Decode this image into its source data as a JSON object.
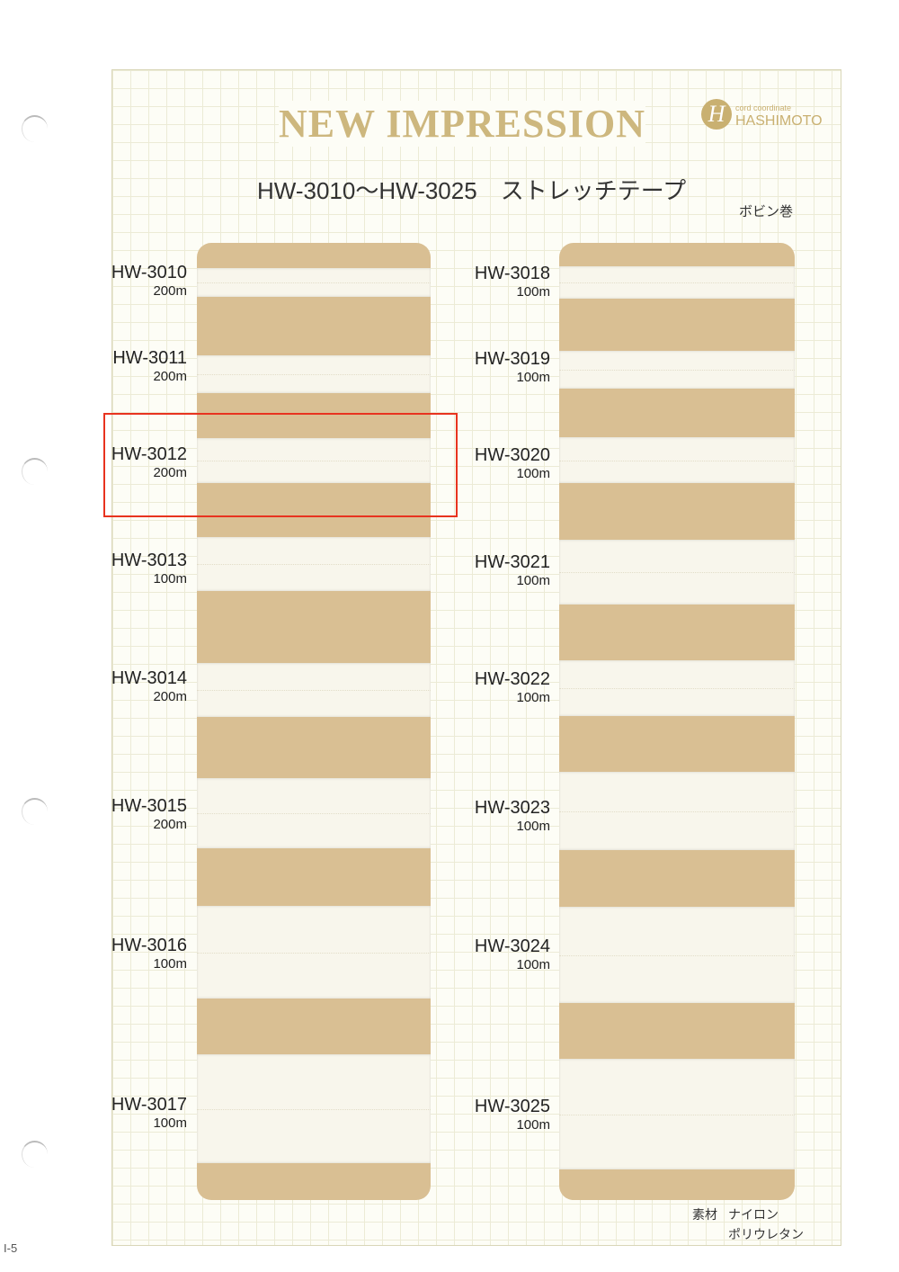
{
  "header": {
    "title": "NEW IMPRESSION",
    "logo_mark": "H",
    "logo_small": "cord coordinate",
    "logo_brand": "HASHIMOTO",
    "subtitle": "HW-3010〜HW-3025　ストレッチテープ",
    "packaging": "ボビン巻"
  },
  "left_items": [
    {
      "code": "HW-3010",
      "length": "200m"
    },
    {
      "code": "HW-3011",
      "length": "200m"
    },
    {
      "code": "HW-3012",
      "length": "200m"
    },
    {
      "code": "HW-3013",
      "length": "100m"
    },
    {
      "code": "HW-3014",
      "length": "200m"
    },
    {
      "code": "HW-3015",
      "length": "200m"
    },
    {
      "code": "HW-3016",
      "length": "100m"
    },
    {
      "code": "HW-3017",
      "length": "100m"
    }
  ],
  "right_items": [
    {
      "code": "HW-3018",
      "length": "100m"
    },
    {
      "code": "HW-3019",
      "length": "100m"
    },
    {
      "code": "HW-3020",
      "length": "100m"
    },
    {
      "code": "HW-3021",
      "length": "100m"
    },
    {
      "code": "HW-3022",
      "length": "100m"
    },
    {
      "code": "HW-3023",
      "length": "100m"
    },
    {
      "code": "HW-3024",
      "length": "100m"
    },
    {
      "code": "HW-3025",
      "length": "100m"
    }
  ],
  "highlighted_item": "HW-3012",
  "highlight_color": "#e8331f",
  "material": {
    "label": "素材",
    "line1": "ナイロン",
    "line2": "ポリウレタン"
  },
  "page_number": "I-5"
}
